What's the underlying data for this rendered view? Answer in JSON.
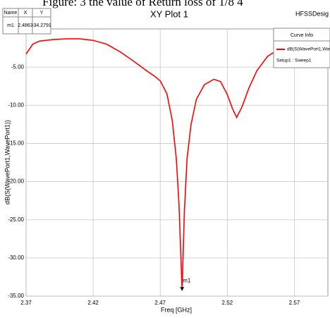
{
  "caption": "Figure: 3 the value of Return loss of 1/8 4",
  "chart_data": {
    "type": "line",
    "title": "XY Plot 1",
    "design_name": "HFSSDesig",
    "xlabel": "Freq [GHz]",
    "ylabel": "dB(S(WavePort1,WavePort1))",
    "x": [
      2.37,
      2.375,
      2.38,
      2.39,
      2.4,
      2.41,
      2.42,
      2.43,
      2.44,
      2.45,
      2.46,
      2.465,
      2.47,
      2.475,
      2.479,
      2.482,
      2.484,
      2.4863,
      2.488,
      2.49,
      2.493,
      2.497,
      2.503,
      2.51,
      2.515,
      2.52,
      2.524,
      2.527,
      2.531,
      2.536,
      2.542,
      2.55,
      2.56,
      2.57,
      2.58,
      2.595
    ],
    "series": [
      {
        "name": "dB(S(WavePort1,WavePort1))",
        "color": "#ff0000",
        "values": [
          -3.3,
          -2.0,
          -1.6,
          -1.4,
          -1.3,
          -1.3,
          -1.5,
          -2.0,
          -3.0,
          -4.2,
          -5.5,
          -6.1,
          -6.8,
          -8.5,
          -12.0,
          -17.0,
          -23.0,
          -34.2791,
          -24.0,
          -17.0,
          -12.5,
          -9.2,
          -7.3,
          -6.6,
          -6.9,
          -8.6,
          -10.5,
          -11.6,
          -10.2,
          -7.8,
          -5.5,
          -3.6,
          -2.5,
          -2.1,
          -2.2,
          -2.5
        ]
      }
    ],
    "xlim": [
      2.37,
      2.595
    ],
    "ylim": [
      -35,
      0
    ],
    "xticks": [
      2.37,
      2.42,
      2.47,
      2.52,
      2.57
    ],
    "yticks": [
      {
        "value": -5,
        "label": "-5.00"
      },
      {
        "value": -10,
        "label": "-10.00"
      },
      {
        "value": -15,
        "label": "-15.00"
      },
      {
        "value": -20,
        "label": "-20.00"
      },
      {
        "value": -25,
        "label": "-25.00"
      },
      {
        "value": -30,
        "label": "-30.00"
      },
      {
        "value": -35,
        "label": "-35.00"
      }
    ],
    "grid": true,
    "legend_title": "Curve Info",
    "legend_note": "Setup1 : Sweep1",
    "marker": {
      "label": "m1",
      "x": 2.4863,
      "y": -34.2791
    },
    "marker_table": {
      "headers": [
        "Name",
        "X",
        "Y"
      ],
      "rows": [
        [
          "m1",
          "2.4863",
          "-34.2791"
        ]
      ]
    }
  }
}
